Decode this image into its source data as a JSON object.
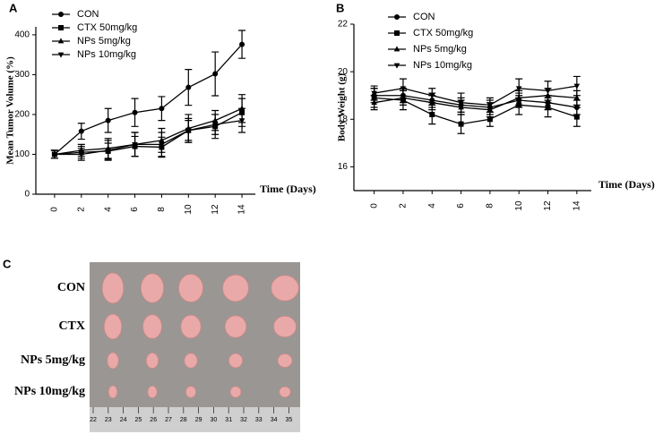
{
  "chart_data": [
    {
      "type": "line",
      "panel": "A",
      "y_label": "Mean Tumor Volume (%)",
      "x_label": "Time (Days)",
      "x": [
        0,
        2,
        4,
        6,
        8,
        10,
        12,
        14
      ],
      "xlim": [
        -1.4,
        15
      ],
      "xticks": [
        0,
        2,
        4,
        6,
        8,
        10,
        12,
        14
      ],
      "ylim": [
        0,
        420
      ],
      "yticks": [
        0,
        100,
        200,
        300,
        400
      ],
      "series": [
        {
          "name": "CON",
          "color": "#000000",
          "marker": "circle",
          "values": [
            100,
            158,
            185,
            205,
            215,
            268,
            302,
            376
          ],
          "errors": [
            10,
            20,
            30,
            35,
            30,
            45,
            55,
            35
          ]
        },
        {
          "name": "CTX 50mg/kg",
          "color": "#000000",
          "marker": "square",
          "values": [
            100,
            105,
            108,
            120,
            118,
            160,
            170,
            205
          ],
          "errors": [
            10,
            15,
            20,
            25,
            25,
            25,
            30,
            35
          ]
        },
        {
          "name": "NPs 5mg/kg",
          "color": "#000000",
          "marker": "triangle-up",
          "values": [
            100,
            110,
            115,
            125,
            135,
            165,
            185,
            215
          ],
          "errors": [
            10,
            15,
            25,
            30,
            30,
            35,
            25,
            35
          ]
        },
        {
          "name": "NPs 10mg/kg",
          "color": "#000000",
          "marker": "triangle-down",
          "values": [
            100,
            100,
            110,
            125,
            125,
            160,
            175,
            185
          ],
          "errors": [
            10,
            15,
            25,
            30,
            30,
            30,
            25,
            30
          ]
        }
      ]
    },
    {
      "type": "line",
      "panel": "B",
      "y_label": "Body Weight (g)",
      "x_label": "Time (Days)",
      "x": [
        0,
        2,
        4,
        6,
        8,
        10,
        12,
        14
      ],
      "xlim": [
        -1.4,
        15
      ],
      "xticks": [
        0,
        2,
        4,
        6,
        8,
        10,
        12,
        14
      ],
      "ylim": [
        15,
        22
      ],
      "yticks": [
        16,
        18,
        20,
        22
      ],
      "series": [
        {
          "name": "CON",
          "color": "#000000",
          "marker": "circle",
          "values": [
            19.0,
            19.0,
            18.8,
            18.6,
            18.5,
            18.8,
            18.7,
            18.5
          ],
          "errors": [
            0.3,
            0.3,
            0.3,
            0.3,
            0.3,
            0.3,
            0.3,
            0.3
          ]
        },
        {
          "name": "CTX 50mg/kg",
          "color": "#000000",
          "marker": "square",
          "values": [
            18.9,
            18.8,
            18.2,
            17.8,
            18.0,
            18.6,
            18.5,
            18.1
          ],
          "errors": [
            0.4,
            0.4,
            0.4,
            0.4,
            0.3,
            0.4,
            0.4,
            0.4
          ]
        },
        {
          "name": "NPs 5mg/kg",
          "color": "#000000",
          "marker": "triangle-up",
          "values": [
            18.7,
            18.9,
            18.7,
            18.5,
            18.4,
            18.9,
            19.0,
            18.9
          ],
          "errors": [
            0.3,
            0.3,
            0.3,
            0.3,
            0.3,
            0.3,
            0.3,
            0.3
          ]
        },
        {
          "name": "NPs 10mg/kg",
          "color": "#000000",
          "marker": "triangle-down",
          "values": [
            19.1,
            19.3,
            19.0,
            18.7,
            18.6,
            19.3,
            19.2,
            19.4
          ],
          "errors": [
            0.3,
            0.4,
            0.3,
            0.4,
            0.3,
            0.4,
            0.4,
            0.4
          ]
        }
      ]
    }
  ],
  "photo": {
    "panel": "C",
    "rows": [
      "CON",
      "CTX",
      "NPs 5mg/kg",
      "NPs 10mg/kg"
    ],
    "ruler": [
      22,
      23,
      24,
      25,
      26,
      27,
      28,
      29,
      30,
      31,
      32,
      33,
      34,
      35
    ]
  }
}
